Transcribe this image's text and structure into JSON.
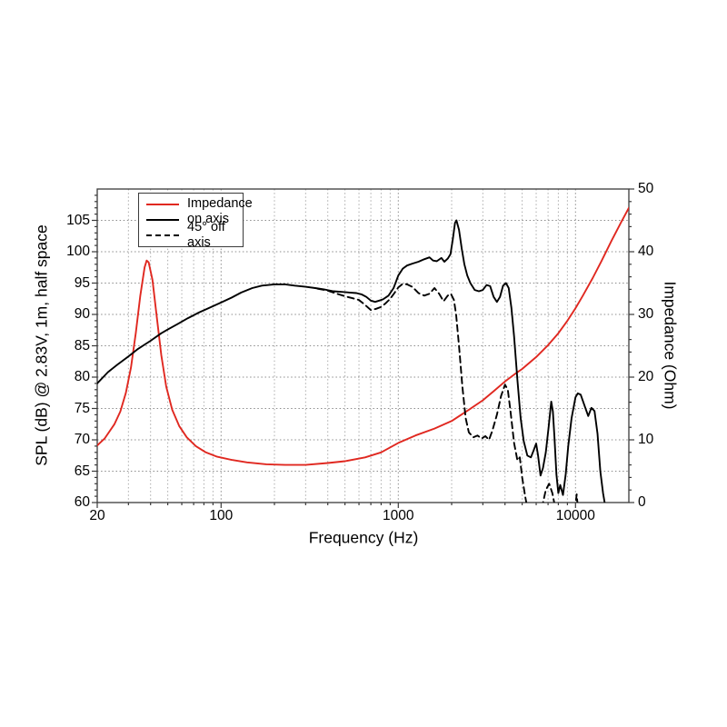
{
  "figure": {
    "x_label": "Frequency (Hz)",
    "y_left_label": "SPL (dB) @ 2.83V, 1m, half space",
    "y_right_label": "Impedance (Ohm)"
  },
  "legend": {
    "items": [
      {
        "label": "Impedance",
        "color": "#e02820",
        "style": "solid"
      },
      {
        "label": "on axis",
        "color": "#000000",
        "style": "solid"
      },
      {
        "label": "45° off axis",
        "color": "#000000",
        "style": "dashed"
      }
    ]
  },
  "colors": {
    "impedance_red": "#e02820",
    "curve_black": "#000000",
    "grid": "#9a9a9a",
    "frame": "#3a3a3a"
  },
  "chart_data": {
    "type": "line",
    "title": "",
    "x_axis": {
      "label": "Frequency (Hz)",
      "scale": "log",
      "min": 20,
      "max": 20000,
      "ticks": [
        20,
        100,
        1000,
        10000
      ]
    },
    "y_left_axis": {
      "label": "SPL (dB) @ 2.83V, 1m, half space",
      "min": 60,
      "max": 110,
      "ticks": [
        105,
        100,
        95,
        90,
        85,
        80,
        75,
        70,
        65,
        60
      ]
    },
    "y_right_axis": {
      "label": "Impedance (Ohm)",
      "min": 0,
      "max": 50,
      "ticks": [
        50,
        40,
        30,
        20,
        10,
        0
      ]
    },
    "grid": {
      "vertical_minor_log": true,
      "horizontal_step_db": 5,
      "style": "dotted"
    },
    "legend_position": "upper-left",
    "series": [
      {
        "name": "Impedance",
        "axis": "right",
        "unit": "Ohm",
        "color": "#e02820",
        "style": "solid",
        "points": [
          [
            20,
            9.1
          ],
          [
            22,
            10.2
          ],
          [
            25,
            12.5
          ],
          [
            27,
            14.5
          ],
          [
            29,
            17.5
          ],
          [
            31,
            21.5
          ],
          [
            33,
            27.0
          ],
          [
            35,
            33.0
          ],
          [
            37,
            37.5
          ],
          [
            38,
            38.6
          ],
          [
            39,
            38.3
          ],
          [
            41,
            35.5
          ],
          [
            43,
            30.5
          ],
          [
            46,
            23.5
          ],
          [
            49,
            18.5
          ],
          [
            53,
            14.8
          ],
          [
            58,
            12.2
          ],
          [
            64,
            10.4
          ],
          [
            72,
            9.0
          ],
          [
            82,
            8.0
          ],
          [
            95,
            7.3
          ],
          [
            115,
            6.8
          ],
          [
            140,
            6.4
          ],
          [
            180,
            6.1
          ],
          [
            230,
            6.0
          ],
          [
            300,
            6.0
          ],
          [
            400,
            6.3
          ],
          [
            500,
            6.6
          ],
          [
            650,
            7.2
          ],
          [
            800,
            8.0
          ],
          [
            1000,
            9.5
          ],
          [
            1250,
            10.7
          ],
          [
            1600,
            11.8
          ],
          [
            2000,
            13.0
          ],
          [
            2500,
            14.8
          ],
          [
            3000,
            16.3
          ],
          [
            3500,
            17.9
          ],
          [
            4000,
            19.3
          ],
          [
            4500,
            20.4
          ],
          [
            5000,
            21.3
          ],
          [
            6000,
            23.2
          ],
          [
            7000,
            25.1
          ],
          [
            8000,
            27.0
          ],
          [
            9000,
            29.0
          ],
          [
            10000,
            31.0
          ],
          [
            11000,
            33.0
          ],
          [
            12500,
            35.8
          ],
          [
            14000,
            38.5
          ],
          [
            16000,
            41.8
          ],
          [
            18000,
            44.6
          ],
          [
            20000,
            47.0
          ]
        ]
      },
      {
        "name": "on axis",
        "axis": "left",
        "unit": "dB",
        "color": "#000000",
        "style": "solid",
        "points": [
          [
            20,
            79.0
          ],
          [
            23,
            80.8
          ],
          [
            26,
            82.0
          ],
          [
            30,
            83.3
          ],
          [
            34,
            84.5
          ],
          [
            40,
            85.8
          ],
          [
            46,
            87.0
          ],
          [
            50,
            87.6
          ],
          [
            57,
            88.5
          ],
          [
            65,
            89.4
          ],
          [
            75,
            90.3
          ],
          [
            85,
            91.0
          ],
          [
            100,
            91.9
          ],
          [
            115,
            92.7
          ],
          [
            130,
            93.5
          ],
          [
            150,
            94.2
          ],
          [
            170,
            94.6
          ],
          [
            200,
            94.8
          ],
          [
            230,
            94.8
          ],
          [
            260,
            94.6
          ],
          [
            300,
            94.4
          ],
          [
            340,
            94.2
          ],
          [
            380,
            94.0
          ],
          [
            430,
            93.7
          ],
          [
            480,
            93.6
          ],
          [
            530,
            93.5
          ],
          [
            580,
            93.4
          ],
          [
            620,
            93.2
          ],
          [
            660,
            92.8
          ],
          [
            700,
            92.2
          ],
          [
            740,
            92.0
          ],
          [
            780,
            92.2
          ],
          [
            820,
            92.4
          ],
          [
            880,
            93.0
          ],
          [
            940,
            94.2
          ],
          [
            1000,
            96.2
          ],
          [
            1060,
            97.3
          ],
          [
            1120,
            97.8
          ],
          [
            1200,
            98.1
          ],
          [
            1300,
            98.4
          ],
          [
            1400,
            98.8
          ],
          [
            1500,
            99.1
          ],
          [
            1570,
            98.6
          ],
          [
            1650,
            98.5
          ],
          [
            1750,
            99.0
          ],
          [
            1820,
            98.4
          ],
          [
            1900,
            98.9
          ],
          [
            1970,
            99.6
          ],
          [
            2030,
            102.0
          ],
          [
            2090,
            104.6
          ],
          [
            2130,
            105.0
          ],
          [
            2200,
            103.5
          ],
          [
            2280,
            100.5
          ],
          [
            2360,
            98.0
          ],
          [
            2450,
            96.2
          ],
          [
            2550,
            95.0
          ],
          [
            2700,
            93.9
          ],
          [
            2850,
            93.7
          ],
          [
            3000,
            93.9
          ],
          [
            3150,
            94.7
          ],
          [
            3300,
            94.5
          ],
          [
            3450,
            92.8
          ],
          [
            3600,
            92.0
          ],
          [
            3750,
            92.8
          ],
          [
            3900,
            94.6
          ],
          [
            4050,
            95.0
          ],
          [
            4200,
            94.2
          ],
          [
            4350,
            91.0
          ],
          [
            4500,
            86.5
          ],
          [
            4700,
            79.5
          ],
          [
            4900,
            73.5
          ],
          [
            5100,
            69.8
          ],
          [
            5350,
            67.5
          ],
          [
            5600,
            67.2
          ],
          [
            5800,
            68.3
          ],
          [
            6000,
            69.4
          ],
          [
            6150,
            67.5
          ],
          [
            6350,
            64.3
          ],
          [
            6550,
            65.5
          ],
          [
            6800,
            68.0
          ],
          [
            7050,
            72.0
          ],
          [
            7300,
            76.1
          ],
          [
            7450,
            74.5
          ],
          [
            7600,
            70.5
          ],
          [
            7800,
            64.5
          ],
          [
            8000,
            61.5
          ],
          [
            8200,
            62.8
          ],
          [
            8500,
            61.2
          ],
          [
            8800,
            64.5
          ],
          [
            9100,
            69.0
          ],
          [
            9500,
            73.5
          ],
          [
            10000,
            76.8
          ],
          [
            10300,
            77.4
          ],
          [
            10700,
            77.2
          ],
          [
            11200,
            75.6
          ],
          [
            11800,
            73.8
          ],
          [
            12300,
            75.1
          ],
          [
            12800,
            74.6
          ],
          [
            13300,
            71.0
          ],
          [
            13800,
            65.0
          ],
          [
            14300,
            61.5
          ],
          [
            14650,
            59.8
          ]
        ]
      },
      {
        "name": "45° off axis",
        "axis": "left",
        "unit": "dB",
        "color": "#000000",
        "style": "dashed",
        "points": [
          [
            350,
            94.1
          ],
          [
            400,
            93.8
          ],
          [
            450,
            93.3
          ],
          [
            500,
            92.9
          ],
          [
            550,
            92.6
          ],
          [
            600,
            92.3
          ],
          [
            650,
            91.5
          ],
          [
            700,
            90.7
          ],
          [
            750,
            90.9
          ],
          [
            800,
            91.2
          ],
          [
            850,
            91.8
          ],
          [
            900,
            92.5
          ],
          [
            950,
            93.4
          ],
          [
            1000,
            94.3
          ],
          [
            1060,
            94.9
          ],
          [
            1120,
            94.8
          ],
          [
            1200,
            94.4
          ],
          [
            1300,
            93.4
          ],
          [
            1400,
            93.0
          ],
          [
            1500,
            93.3
          ],
          [
            1600,
            94.2
          ],
          [
            1700,
            93.3
          ],
          [
            1800,
            92.1
          ],
          [
            1900,
            93.0
          ],
          [
            1980,
            93.3
          ],
          [
            2060,
            92.3
          ],
          [
            2120,
            90.0
          ],
          [
            2200,
            85.0
          ],
          [
            2300,
            78.5
          ],
          [
            2400,
            73.5
          ],
          [
            2500,
            71.2
          ],
          [
            2650,
            70.4
          ],
          [
            2800,
            70.7
          ],
          [
            2950,
            70.2
          ],
          [
            3100,
            70.6
          ],
          [
            3250,
            70.0
          ],
          [
            3400,
            71.5
          ],
          [
            3600,
            74.0
          ],
          [
            3800,
            77.0
          ],
          [
            4000,
            78.8
          ],
          [
            4150,
            78.0
          ],
          [
            4300,
            74.5
          ],
          [
            4500,
            69.5
          ],
          [
            4700,
            66.7
          ],
          [
            4850,
            67.2
          ],
          [
            5000,
            64.0
          ],
          [
            5200,
            61.0
          ],
          [
            5400,
            58.5
          ],
          [
            5700,
            58.0
          ],
          [
            6100,
            58.5
          ],
          [
            6500,
            59.5
          ],
          [
            6800,
            62.0
          ],
          [
            7100,
            63.0
          ],
          [
            7400,
            61.5
          ],
          [
            7700,
            59.0
          ],
          [
            8100,
            57.5
          ],
          [
            8700,
            57.0
          ],
          [
            9300,
            57.5
          ],
          [
            9900,
            58.5
          ],
          [
            10150,
            61.3
          ],
          [
            10400,
            58.0
          ],
          [
            10600,
            56.0
          ]
        ]
      }
    ]
  }
}
